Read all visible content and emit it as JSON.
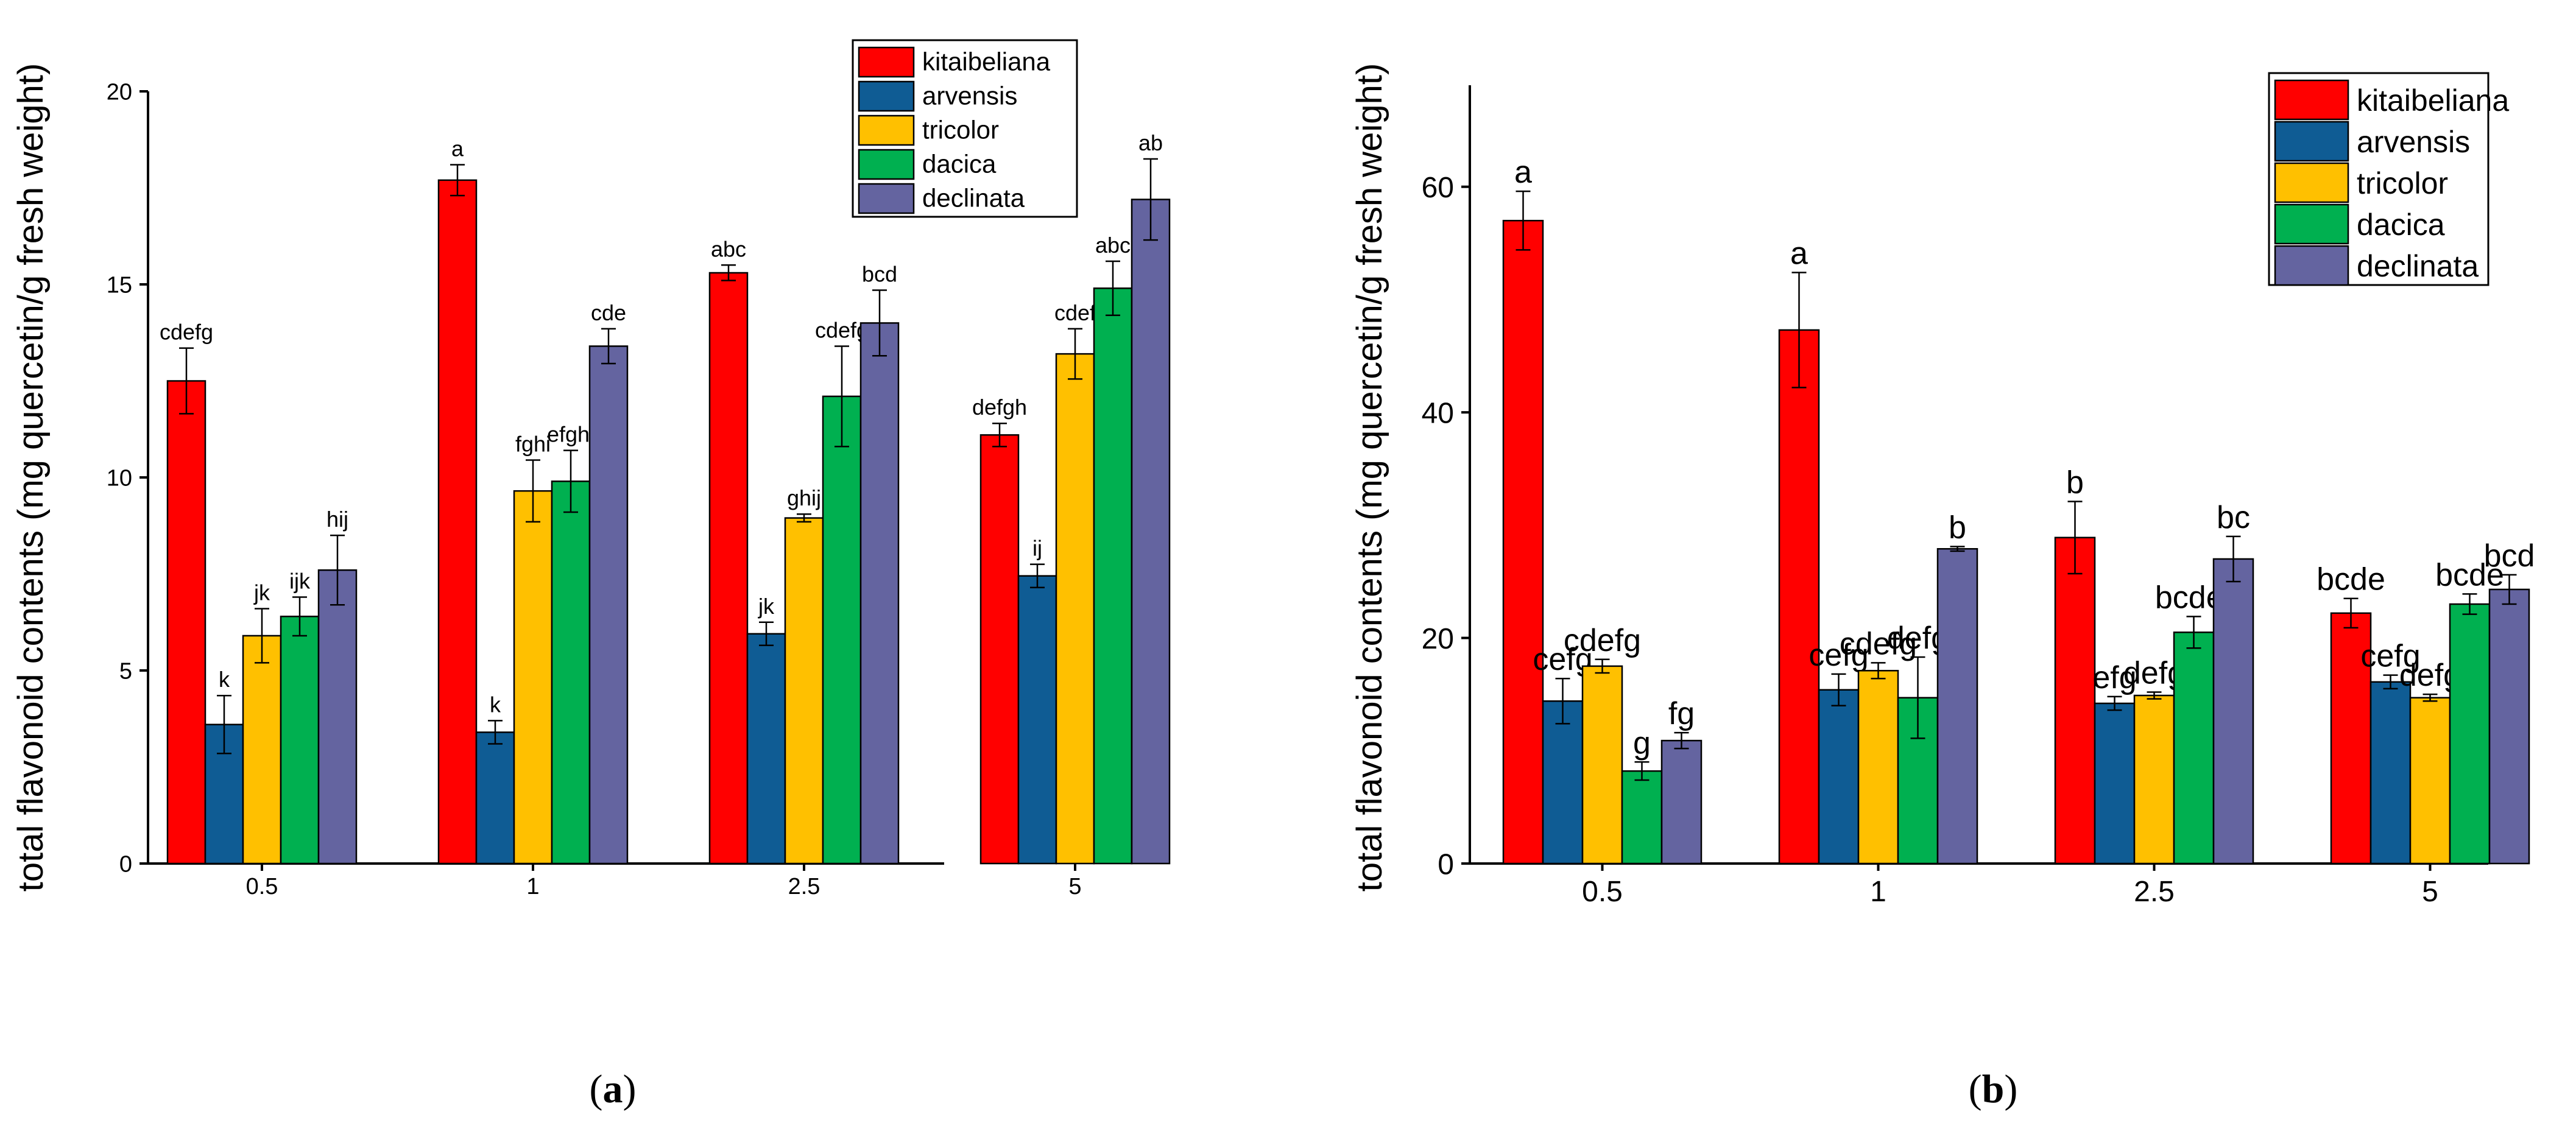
{
  "chart_data": [
    {
      "type": "bar",
      "panel": "(a)",
      "panel_letter": "a",
      "ylabel": "total flavonoid contents (mg quercetin/g fresh weight)",
      "xlabel": "",
      "ylim": [
        0,
        20
      ],
      "yticks": [
        0,
        5,
        10,
        15,
        20
      ],
      "categories": [
        "0.5",
        "1",
        "2.5",
        "5"
      ],
      "legend_position": "top-right",
      "series": [
        {
          "name": "kitaibeliana",
          "color": "#ff0000",
          "values": [
            12.5,
            17.7,
            15.3,
            11.1
          ],
          "errors": [
            0.85,
            0.4,
            0.2,
            0.3
          ],
          "labels": [
            "cdefg",
            "a",
            "abc",
            "defgh"
          ]
        },
        {
          "name": "arvensis",
          "color": "#0f5c94",
          "values": [
            3.6,
            3.4,
            5.95,
            7.45
          ],
          "errors": [
            0.75,
            0.3,
            0.3,
            0.3
          ],
          "labels": [
            "k",
            "k",
            "jk",
            "ij"
          ]
        },
        {
          "name": "tricolor",
          "color": "#ffc000",
          "values": [
            5.9,
            9.65,
            8.95,
            13.2
          ],
          "errors": [
            0.7,
            0.8,
            0.1,
            0.65
          ],
          "labels": [
            "jk",
            "fghi",
            "ghij",
            "cdef"
          ]
        },
        {
          "name": "dacica",
          "color": "#00b050",
          "values": [
            6.4,
            9.9,
            12.1,
            14.9
          ],
          "errors": [
            0.5,
            0.8,
            1.3,
            0.7
          ],
          "labels": [
            "ijk",
            "efghi",
            "cdefg",
            "abc"
          ]
        },
        {
          "name": "declinata",
          "color": "#6464a0",
          "values": [
            7.6,
            13.4,
            14.0,
            17.2
          ],
          "errors": [
            0.9,
            0.45,
            0.85,
            1.05
          ],
          "labels": [
            "hij",
            "cde",
            "bcd",
            "ab"
          ]
        }
      ]
    },
    {
      "type": "bar",
      "panel": "(b)",
      "panel_letter": "b",
      "ylabel": "total flavonoid contents (mg quercetin/g fresh weight)",
      "xlabel": "",
      "ylim": [
        0,
        69
      ],
      "yticks": [
        0,
        20,
        40,
        60
      ],
      "categories": [
        "0.5",
        "1",
        "2.5",
        "5"
      ],
      "legend_position": "top-right",
      "series": [
        {
          "name": "kitaibeliana",
          "color": "#ff0000",
          "values": [
            57.0,
            47.3,
            28.9,
            22.2
          ],
          "errors": [
            2.6,
            5.1,
            3.2,
            1.3
          ],
          "labels": [
            "a",
            "a",
            "b",
            "bcde"
          ]
        },
        {
          "name": "arvensis",
          "color": "#0f5c94",
          "values": [
            14.4,
            15.4,
            14.2,
            16.1
          ],
          "errors": [
            2.0,
            1.4,
            0.6,
            0.6
          ],
          "labels": [
            "cefg",
            "cefg",
            "efg",
            "cefg"
          ]
        },
        {
          "name": "tricolor",
          "color": "#ffc000",
          "values": [
            17.5,
            17.1,
            14.9,
            14.7
          ],
          "errors": [
            0.6,
            0.7,
            0.3,
            0.3
          ],
          "labels": [
            "cdefg",
            "cdefg",
            "defg",
            "defg"
          ]
        },
        {
          "name": "dacica",
          "color": "#00b050",
          "values": [
            8.2,
            14.7,
            20.5,
            23.0
          ],
          "errors": [
            0.8,
            3.6,
            1.4,
            0.9
          ],
          "labels": [
            "g",
            "defg",
            "bcdef",
            "bcde"
          ]
        },
        {
          "name": "declinata",
          "color": "#6464a0",
          "values": [
            10.9,
            27.9,
            27.0,
            24.3
          ],
          "errors": [
            0.7,
            0.2,
            2.0,
            1.3
          ],
          "labels": [
            "fg",
            "b",
            "bc",
            "bcd"
          ]
        }
      ]
    }
  ]
}
